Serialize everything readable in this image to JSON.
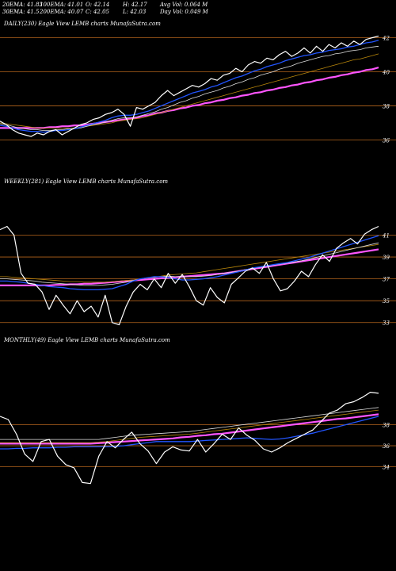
{
  "stats": {
    "row1": [
      "20EMA: 41.83",
      "100EMA: 41.01",
      "O: 42.14",
      "H: 42.17",
      "Avg Vol: 0.064  M"
    ],
    "row2": [
      "30EMA: 41.5",
      "200EMA: 40.07",
      "C: 42.05",
      "L: 42.03",
      "Day Vol: 0.049 M"
    ]
  },
  "colors": {
    "background": "#000000",
    "price": "#ffffff",
    "ema_short": "#2255ff",
    "ema_long": "#ff55ff",
    "ema_mid1": "#dddddd",
    "ema_mid2": "#b8860b",
    "gridline": "#b5651d"
  },
  "chart_data": [
    {
      "type": "line",
      "title": "DAILY(230) Eagle   View  LEMB charts MunafaSutra.com",
      "yticks": [
        42,
        40,
        38,
        36
      ],
      "ylim": [
        35.6,
        42.35
      ],
      "price": [
        37.1,
        36.9,
        36.6,
        36.4,
        36.3,
        36.2,
        36.4,
        36.3,
        36.5,
        36.6,
        36.3,
        36.5,
        36.7,
        36.9,
        37.0,
        37.2,
        37.3,
        37.5,
        37.6,
        37.8,
        37.5,
        36.8,
        37.9,
        37.8,
        38.0,
        38.2,
        38.6,
        38.9,
        38.6,
        38.8,
        39.0,
        39.2,
        39.1,
        39.3,
        39.6,
        39.5,
        39.8,
        39.9,
        40.2,
        40.0,
        40.4,
        40.6,
        40.5,
        40.8,
        40.7,
        41.0,
        41.2,
        40.9,
        41.1,
        41.4,
        41.1,
        41.5,
        41.2,
        41.6,
        41.4,
        41.7,
        41.5,
        41.8,
        41.6,
        41.9,
        42.0,
        42.1
      ],
      "series": [
        {
          "values": [
            36.85,
            36.8,
            36.7,
            36.6,
            36.55,
            36.5,
            36.5,
            36.45,
            36.5,
            36.55,
            36.55,
            36.6,
            36.65,
            36.75,
            36.85,
            36.95,
            37.05,
            37.15,
            37.3,
            37.4,
            37.45,
            37.45,
            37.5,
            37.6,
            37.7,
            37.85,
            38.0,
            38.15,
            38.3,
            38.45,
            38.6,
            38.75,
            38.85,
            38.95,
            39.1,
            39.2,
            39.35,
            39.5,
            39.65,
            39.75,
            39.9,
            40.05,
            40.15,
            40.3,
            40.4,
            40.5,
            40.65,
            40.75,
            40.85,
            40.95,
            41.0,
            41.1,
            41.15,
            41.25,
            41.3,
            41.35,
            41.45,
            41.5,
            41.6,
            41.7,
            41.75,
            41.85
          ]
        },
        {
          "values": [
            36.95,
            36.9,
            36.8,
            36.7,
            36.65,
            36.6,
            36.6,
            36.55,
            36.55,
            36.6,
            36.6,
            36.65,
            36.65,
            36.7,
            36.8,
            36.9,
            36.95,
            37.05,
            37.15,
            37.25,
            37.3,
            37.3,
            37.35,
            37.45,
            37.55,
            37.65,
            37.8,
            37.9,
            38.05,
            38.2,
            38.3,
            38.45,
            38.55,
            38.7,
            38.8,
            38.9,
            39.05,
            39.15,
            39.3,
            39.4,
            39.55,
            39.65,
            39.8,
            39.9,
            40.0,
            40.15,
            40.25,
            40.35,
            40.5,
            40.6,
            40.7,
            40.8,
            40.9,
            40.95,
            41.05,
            41.1,
            41.2,
            41.25,
            41.3,
            41.4,
            41.45,
            41.5
          ]
        },
        {
          "values": [
            37.0,
            36.95,
            36.9,
            36.85,
            36.8,
            36.75,
            36.7,
            36.7,
            36.7,
            36.7,
            36.7,
            36.7,
            36.7,
            36.75,
            36.8,
            36.85,
            36.9,
            36.95,
            37.0,
            37.1,
            37.15,
            37.2,
            37.25,
            37.3,
            37.4,
            37.5,
            37.6,
            37.7,
            37.8,
            37.9,
            38.0,
            38.1,
            38.2,
            38.3,
            38.4,
            38.5,
            38.6,
            38.7,
            38.8,
            38.9,
            39.0,
            39.1,
            39.2,
            39.3,
            39.4,
            39.5,
            39.6,
            39.7,
            39.8,
            39.9,
            40.0,
            40.1,
            40.2,
            40.3,
            40.4,
            40.5,
            40.6,
            40.7,
            40.75,
            40.85,
            40.95,
            41.05
          ]
        },
        {
          "values": [
            36.7,
            36.7,
            36.7,
            36.7,
            36.7,
            36.7,
            36.7,
            36.7,
            36.75,
            36.75,
            36.8,
            36.8,
            36.85,
            36.85,
            36.9,
            36.95,
            37.0,
            37.05,
            37.1,
            37.15,
            37.2,
            37.25,
            37.3,
            37.4,
            37.45,
            37.55,
            37.6,
            37.7,
            37.75,
            37.85,
            37.9,
            38.0,
            38.05,
            38.15,
            38.2,
            38.3,
            38.35,
            38.45,
            38.5,
            38.6,
            38.65,
            38.75,
            38.8,
            38.9,
            38.95,
            39.05,
            39.1,
            39.2,
            39.25,
            39.35,
            39.4,
            39.5,
            39.55,
            39.65,
            39.7,
            39.8,
            39.85,
            39.95,
            40.0,
            40.1,
            40.15,
            40.25
          ]
        }
      ]
    },
    {
      "type": "line",
      "title": "WEEKLY(281) Eagle   View  LEMB charts MunafaSutra.com",
      "yticks": [
        41,
        39,
        37,
        35,
        33
      ],
      "ylim": [
        32.4,
        42.2
      ],
      "price": [
        41.5,
        41.8,
        41.0,
        37.5,
        36.6,
        36.5,
        35.8,
        34.2,
        35.5,
        34.6,
        33.8,
        35.0,
        34.0,
        34.5,
        33.5,
        35.5,
        33.0,
        32.8,
        34.5,
        35.8,
        36.5,
        36.0,
        37.0,
        36.2,
        37.5,
        36.6,
        37.4,
        36.3,
        35.0,
        34.6,
        36.2,
        35.3,
        34.8,
        36.5,
        37.1,
        37.7,
        38.0,
        37.5,
        38.5,
        37.0,
        35.9,
        36.1,
        36.8,
        37.7,
        37.2,
        38.3,
        39.2,
        38.6,
        39.8,
        40.3,
        40.7,
        40.2,
        41.1,
        41.5,
        41.8
      ],
      "series": [
        {
          "values": [
            36.8,
            36.8,
            36.75,
            36.7,
            36.6,
            36.5,
            36.4,
            36.3,
            36.25,
            36.2,
            36.1,
            36.05,
            36.0,
            36.0,
            36.0,
            36.05,
            36.1,
            36.3,
            36.5,
            36.8,
            37.0,
            37.1,
            37.2,
            37.2,
            37.1,
            37.0,
            36.9,
            36.9,
            36.95,
            37.0,
            37.1,
            37.2,
            37.35,
            37.5,
            37.65,
            37.8,
            38.0,
            38.1,
            38.2,
            38.3,
            38.4,
            38.5,
            38.65,
            38.8,
            38.95,
            39.15,
            39.35,
            39.55,
            39.75,
            39.95,
            40.15,
            40.35,
            40.55,
            40.75,
            40.95
          ]
        },
        {
          "values": [
            37.0,
            37.0,
            36.95,
            36.9,
            36.85,
            36.8,
            36.7,
            36.65,
            36.6,
            36.55,
            36.5,
            36.45,
            36.4,
            36.4,
            36.4,
            36.45,
            36.5,
            36.6,
            36.7,
            36.85,
            37.0,
            37.1,
            37.15,
            37.2,
            37.25,
            37.2,
            37.2,
            37.2,
            37.2,
            37.25,
            37.3,
            37.4,
            37.5,
            37.6,
            37.7,
            37.85,
            37.95,
            38.05,
            38.15,
            38.25,
            38.35,
            38.45,
            38.55,
            38.65,
            38.8,
            38.95,
            39.1,
            39.25,
            39.4,
            39.55,
            39.7,
            39.85,
            40.0,
            40.15,
            40.3
          ]
        },
        {
          "values": [
            37.2,
            37.2,
            37.15,
            37.1,
            37.05,
            37.0,
            36.95,
            36.9,
            36.85,
            36.8,
            36.75,
            36.75,
            36.7,
            36.7,
            36.7,
            36.7,
            36.75,
            36.8,
            36.85,
            36.9,
            37.0,
            37.05,
            37.15,
            37.25,
            37.35,
            37.4,
            37.45,
            37.5,
            37.55,
            37.65,
            37.75,
            37.85,
            37.95,
            38.05,
            38.15,
            38.25,
            38.35,
            38.45,
            38.55,
            38.65,
            38.75,
            38.85,
            38.95,
            39.05,
            39.15,
            39.25,
            39.35,
            39.45,
            39.55,
            39.65,
            39.75,
            39.85,
            39.95,
            40.05,
            40.15
          ]
        },
        {
          "values": [
            36.4,
            36.4,
            36.4,
            36.4,
            36.4,
            36.4,
            36.4,
            36.4,
            36.45,
            36.45,
            36.5,
            36.5,
            36.55,
            36.55,
            36.6,
            36.65,
            36.7,
            36.75,
            36.8,
            36.85,
            36.9,
            36.95,
            37.0,
            37.05,
            37.1,
            37.15,
            37.2,
            37.25,
            37.3,
            37.35,
            37.4,
            37.45,
            37.5,
            37.6,
            37.7,
            37.8,
            37.9,
            38.0,
            38.1,
            38.2,
            38.3,
            38.4,
            38.5,
            38.6,
            38.7,
            38.8,
            38.9,
            39.0,
            39.1,
            39.2,
            39.3,
            39.4,
            39.5,
            39.6,
            39.7
          ]
        }
      ]
    },
    {
      "type": "line",
      "title": "MONTHLY(49) Eagle   View  LEMB charts MunafaSutra.com",
      "yticks": [
        38,
        36,
        34
      ],
      "ylim": [
        32.0,
        42.2
      ],
      "price": [
        38.8,
        38.5,
        37.1,
        35.2,
        34.5,
        36.4,
        36.6,
        35.0,
        34.2,
        33.9,
        32.5,
        32.4,
        35.0,
        36.4,
        35.8,
        36.6,
        37.3,
        36.2,
        35.5,
        34.3,
        35.4,
        35.9,
        35.6,
        35.5,
        36.6,
        35.4,
        36.2,
        37.1,
        36.6,
        37.7,
        37.0,
        36.5,
        35.7,
        35.4,
        35.8,
        36.3,
        36.7,
        37.1,
        37.5,
        38.3,
        39.1,
        39.4,
        40.0,
        40.2,
        40.6,
        41.1,
        41.0
      ],
      "series": [
        {
          "values": [
            35.7,
            35.7,
            35.75,
            35.75,
            35.8,
            35.8,
            35.8,
            35.85,
            35.85,
            35.9,
            35.9,
            35.9,
            35.9,
            35.9,
            35.95,
            36.0,
            36.1,
            36.2,
            36.3,
            36.4,
            36.4,
            36.4,
            36.4,
            36.4,
            36.45,
            36.5,
            36.55,
            36.6,
            36.65,
            36.7,
            36.75,
            36.7,
            36.65,
            36.6,
            36.65,
            36.75,
            36.9,
            37.05,
            37.2,
            37.4,
            37.6,
            37.8,
            38.0,
            38.2,
            38.4,
            38.6,
            38.8
          ]
        },
        {
          "values": [
            36.6,
            36.6,
            36.6,
            36.6,
            36.6,
            36.6,
            36.6,
            36.6,
            36.6,
            36.6,
            36.6,
            36.6,
            36.6,
            36.7,
            36.8,
            36.9,
            37.0,
            37.05,
            37.1,
            37.15,
            37.2,
            37.25,
            37.3,
            37.35,
            37.45,
            37.55,
            37.65,
            37.75,
            37.85,
            37.95,
            38.05,
            38.15,
            38.25,
            38.35,
            38.45,
            38.55,
            38.65,
            38.75,
            38.85,
            38.95,
            39.05,
            39.15,
            39.25,
            39.35,
            39.45,
            39.55,
            39.65
          ]
        },
        {
          "values": [
            36.3,
            36.3,
            36.3,
            36.3,
            36.3,
            36.3,
            36.3,
            36.3,
            36.3,
            36.3,
            36.3,
            36.3,
            36.35,
            36.4,
            36.5,
            36.6,
            36.7,
            36.8,
            36.85,
            36.9,
            36.95,
            37.0,
            37.05,
            37.1,
            37.2,
            37.3,
            37.4,
            37.5,
            37.6,
            37.7,
            37.8,
            37.9,
            38.0,
            38.1,
            38.2,
            38.3,
            38.4,
            38.5,
            38.6,
            38.7,
            38.8,
            38.9,
            39.0,
            39.1,
            39.2,
            39.3,
            39.4
          ]
        },
        {
          "values": [
            36.2,
            36.2,
            36.2,
            36.2,
            36.2,
            36.2,
            36.2,
            36.2,
            36.2,
            36.2,
            36.2,
            36.2,
            36.25,
            36.3,
            36.35,
            36.4,
            36.45,
            36.5,
            36.55,
            36.6,
            36.65,
            36.7,
            36.8,
            36.85,
            36.95,
            37.0,
            37.1,
            37.15,
            37.25,
            37.35,
            37.45,
            37.55,
            37.65,
            37.75,
            37.85,
            37.95,
            38.05,
            38.15,
            38.25,
            38.35,
            38.45,
            38.55,
            38.6,
            38.7,
            38.8,
            38.9,
            39.0
          ]
        }
      ]
    }
  ]
}
